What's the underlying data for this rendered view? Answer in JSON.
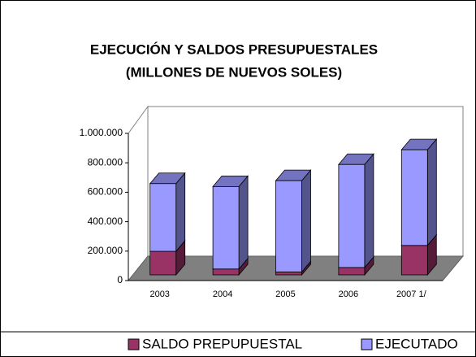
{
  "chart_data": {
    "type": "bar3d_stacked",
    "title": "EJECUCIÓN Y SALDOS PRESUPUESTALES",
    "subtitle": "(MILLONES DE NUEVOS SOLES)",
    "categories": [
      "2003",
      "2004",
      "2005",
      "2006",
      "2007 1/"
    ],
    "series": [
      {
        "name": "SALDO PREPUPUESTAL",
        "color": "#993366",
        "values": [
          160000,
          40000,
          20000,
          50000,
          200000
        ]
      },
      {
        "name": "EJECUTADO",
        "color": "#9999ff",
        "values": [
          460000,
          560000,
          620000,
          700000,
          650000
        ]
      }
    ],
    "ylim": [
      0,
      1000000
    ],
    "yticks": [
      0,
      {
        "value": 200000,
        "label": "200.000"
      },
      {
        "value": 400000,
        "label": "400.000"
      },
      {
        "value": 600000,
        "label": "600.000"
      },
      {
        "value": 800000,
        "label": "800.000"
      },
      {
        "value": 1000000,
        "label": "1.000.000"
      }
    ],
    "legend": "bottom"
  }
}
